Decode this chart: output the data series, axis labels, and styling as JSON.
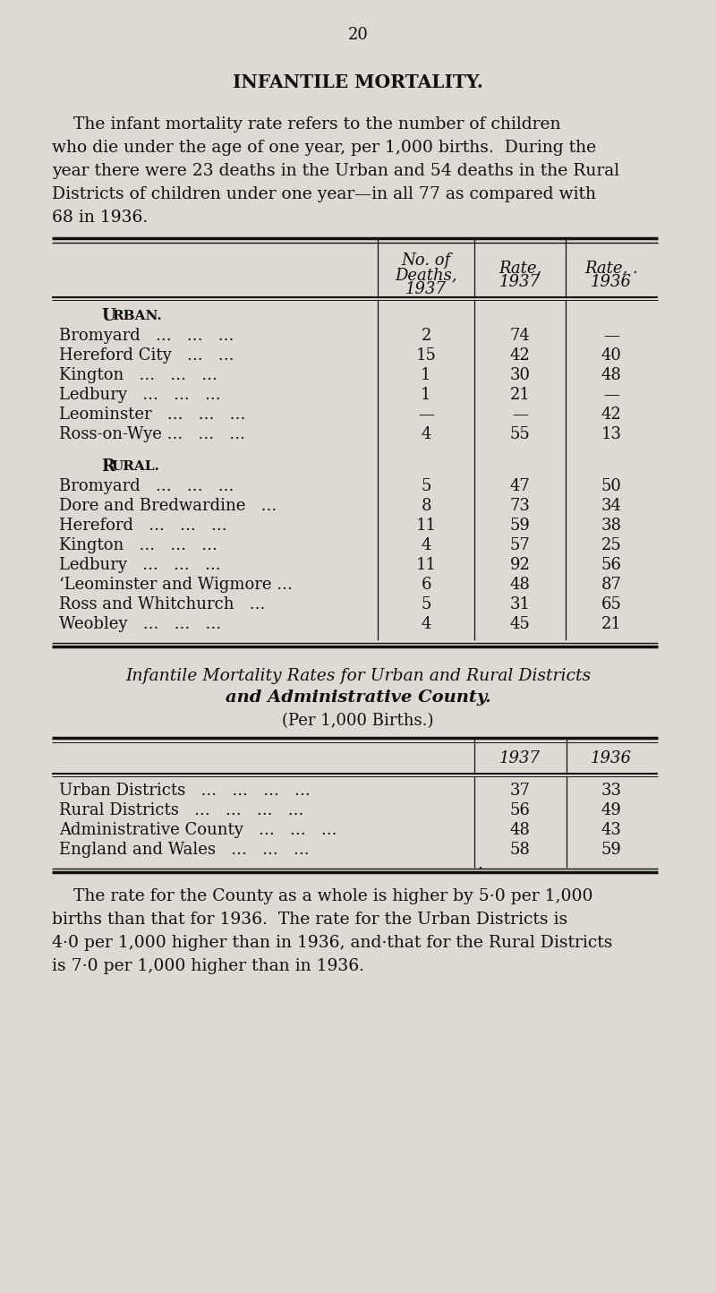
{
  "page_number": "20",
  "title": "INFANTILE MORTALITY.",
  "intro_text": "The infant mortality rate refers to the number of children who die under the age of one year, per 1,000 births.  During the year there were 23 deaths in the Urban and 54 deaths in the Rural Districts of children under one year—in all 77 as compared with 68 in 1936.",
  "bg_color": "#dedad3",
  "text_color": "#111111",
  "urban_rows": [
    [
      "Bromyard   ...   ...   ...",
      "2",
      "74",
      "—"
    ],
    [
      "Hereford City   ...   ...",
      "15",
      "42",
      "40"
    ],
    [
      "Kington   ...   ...   ...",
      "1",
      "30",
      "48"
    ],
    [
      "Ledbury   ...   ...   ...",
      "1",
      "21",
      "—"
    ],
    [
      "Leominster   ...   ...   ...",
      "—",
      "—",
      "42"
    ],
    [
      "Ross-on-Wye ...   ...   ...",
      "4",
      "55",
      "13"
    ]
  ],
  "rural_rows": [
    [
      "Bromyard   ...   ...   ...",
      "5",
      "47",
      "50"
    ],
    [
      "Dore and Bredwardine   ...",
      "8",
      "73",
      "34"
    ],
    [
      "Hereford   ...   ...   ...",
      "11",
      "59",
      "38"
    ],
    [
      "Kington   ...   ...   ...",
      "4",
      "57",
      "25"
    ],
    [
      "Ledbury   ...   ...   ...",
      "11",
      "92",
      "56"
    ],
    [
      "‘Leominster and Wigmore ...",
      "6",
      "48",
      "87"
    ],
    [
      "Ross and Whitchurch   ...",
      "5",
      "31",
      "65"
    ],
    [
      "Weobley   ...   ...   ...",
      "4",
      "45",
      "21"
    ]
  ],
  "table2_title_line1": "Infantile Mortality Rates for Urban and Rural Districts",
  "table2_title_line2": "and Administrative County.",
  "table2_subtitle": "(Per 1,000 Births.)",
  "table2_rows": [
    [
      "Urban Districts   ...   ...   ...   ...",
      "37",
      "33"
    ],
    [
      "Rural Districts   ...   ...   ...   ...",
      "56",
      "49"
    ],
    [
      "Administrative County   ...   ...   ...",
      "48",
      "43"
    ],
    [
      "England and Wales   ...   ...   ...",
      "58",
      "59"
    ]
  ],
  "footer_text": "The rate for the County as a whole is higher by 5·0 per 1,000 births than that for 1936.  The rate for the Urban Districts is 4·0 per 1,000 higher than in 1936, and·that for the Rural Districts is 7·0 per 1,000 higher than in 1936."
}
